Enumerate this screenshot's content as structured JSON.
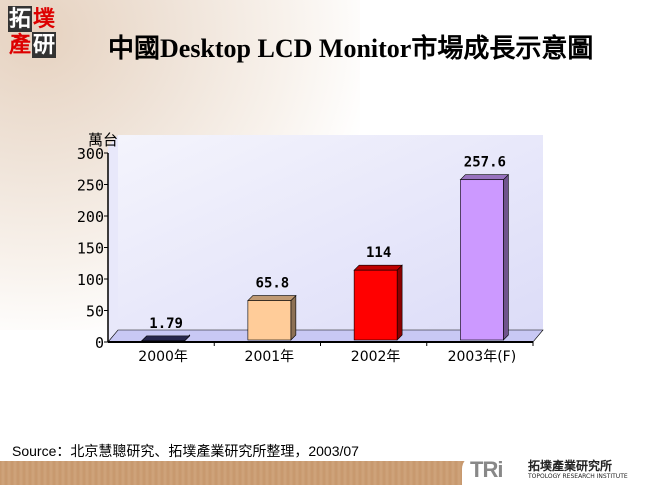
{
  "logo": {
    "chars": [
      "拓",
      "墣",
      "產",
      "研"
    ]
  },
  "title": "中國Desktop LCD Monitor市場成長示意圖",
  "source": "Source：北京慧聰研究、拓墣產業研究所整理，2003/07",
  "footer_logo": {
    "mark": "TRi",
    "name_cn": "拓墣產業研究所",
    "name_en": "TOPOLOGY RESEARCH INSTITUTE"
  },
  "chart_data": {
    "type": "bar",
    "title": "中國Desktop LCD Monitor市場成長示意圖",
    "ylabel": "萬台",
    "xlabel": "",
    "categories": [
      "2000年",
      "2001年",
      "2002年",
      "2003年(F)"
    ],
    "values": [
      1.79,
      65.8,
      114,
      257.6
    ],
    "data_labels": [
      "1.79",
      "65.8",
      "114",
      "257.6"
    ],
    "colors": [
      "#333366",
      "#ffcc99",
      "#ff0000",
      "#cc99ff"
    ],
    "ylim": [
      0,
      300
    ],
    "yticks": [
      0,
      50,
      100,
      150,
      200,
      250,
      300
    ],
    "style": "3d",
    "grid": false
  }
}
